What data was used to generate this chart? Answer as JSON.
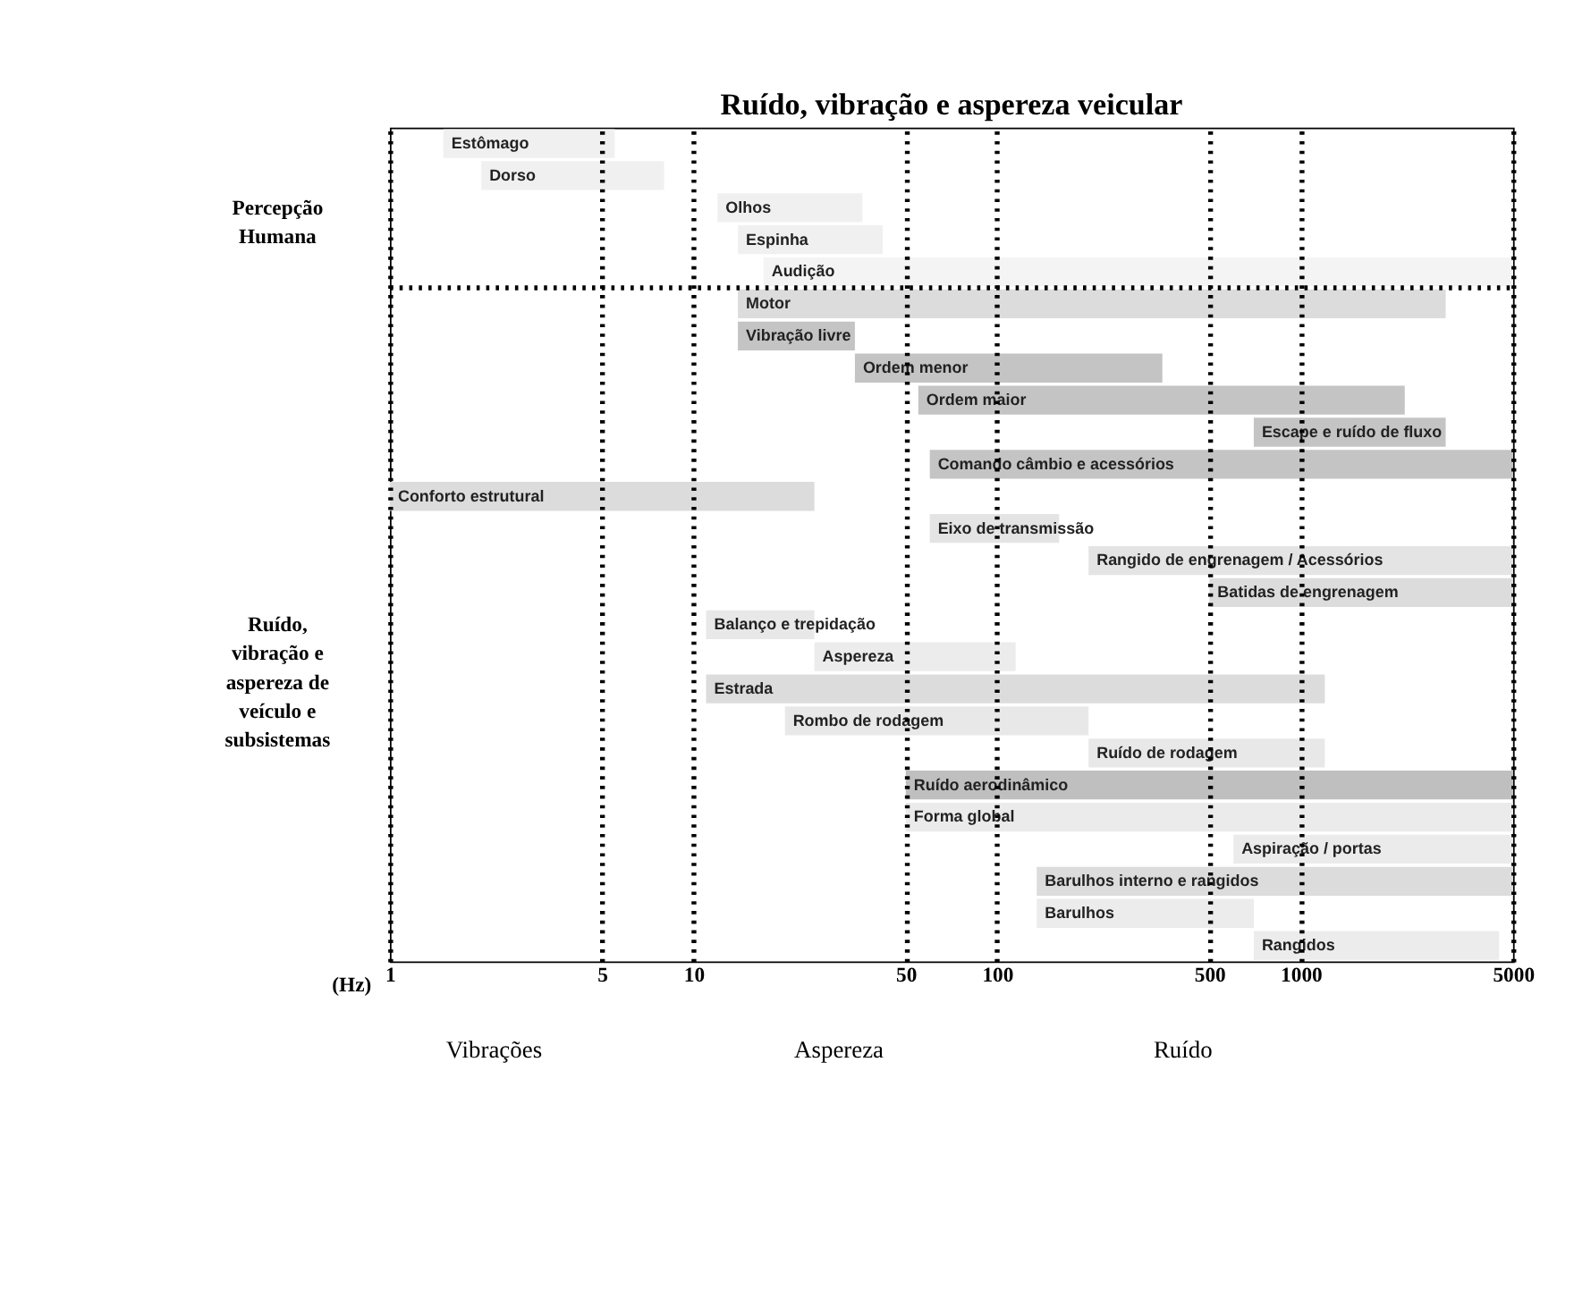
{
  "chart_data": {
    "type": "bar",
    "orientation": "horizontal",
    "title": "Ruído, vibração e aspereza veicular",
    "xlabel": "(Hz)",
    "categories": [
      "Estômago",
      "Dorso",
      "Olhos",
      "Espinha",
      "Audição",
      "Motor",
      "Vibração livre",
      "Ordem menor",
      "Ordem maior",
      "Escape e ruído de fluxo",
      "Comando câmbio e acessórios",
      "Conforto estrutural",
      "Eixo de transmissão",
      "Rangido de engrenagem / Acessórios",
      "Batidas de engrenagem",
      "Balanço e trepidação",
      "Aspereza",
      "Estrada",
      "Rombo de rodagem",
      "Ruído de rodagem",
      "Ruído aerodinâmico",
      "Forma global",
      "Aspiração / portas",
      "Barulhos interno e rangidos",
      "Barulhos",
      "Rangidos"
    ],
    "base": [
      1.5,
      2,
      12,
      14,
      17,
      14,
      14,
      34,
      55,
      700,
      60,
      1,
      60,
      200,
      500,
      11,
      25,
      11,
      20,
      200,
      50,
      50,
      600,
      135,
      135,
      700
    ],
    "values": [
      4,
      6,
      24,
      28,
      4983,
      2986,
      20,
      316,
      2145,
      2300,
      4940,
      24,
      100,
      4800,
      4500,
      14,
      90,
      1189,
      180,
      1000,
      4950,
      4950,
      4400,
      4865,
      565,
      3800
    ],
    "colors": [
      "#f0f0f0",
      "#f0f0f0",
      "#f0f0f0",
      "#f0f0f0",
      "#f4f4f4",
      "#dcdcdc",
      "#c4c4c4",
      "#c4c4c4",
      "#c4c4c4",
      "#c4c4c4",
      "#c4c4c4",
      "#dcdcdc",
      "#e4e4e4",
      "#e4e4e4",
      "#dcdcdc",
      "#e8e8e8",
      "#ececec",
      "#dcdcdc",
      "#e8e8e8",
      "#e8e8e8",
      "#bfbfbf",
      "#ebebeb",
      "#ebebeb",
      "#dcdcdc",
      "#ececec",
      "#ececec"
    ],
    "xlim": [
      1,
      5000
    ],
    "xticks": [
      1,
      5,
      10,
      50,
      100,
      500,
      1000,
      5000
    ],
    "log": "x",
    "grid": "x",
    "tick_labels": "x",
    "annotations": [
      "Percepção Humana",
      "Ruído, vibração e aspereza de veículo e subsistemas",
      "Vibrações",
      "Aspereza",
      "Ruído"
    ]
  }
}
